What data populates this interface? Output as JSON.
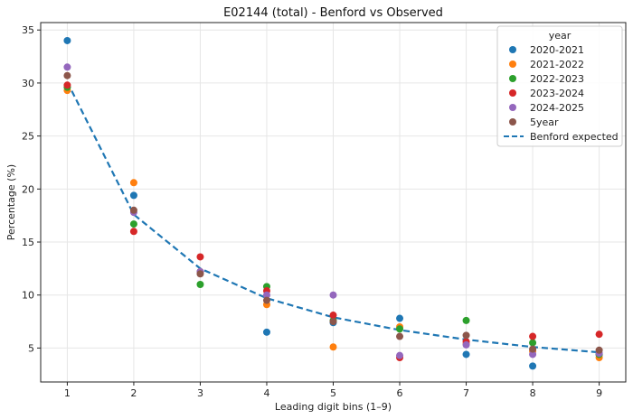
{
  "chart_data": {
    "type": "scatter",
    "title": "E02144 (total) - Benford vs Observed",
    "xlabel": "Leading digit bins (1–9)",
    "ylabel": "Percentage (%)",
    "x": [
      1,
      2,
      3,
      4,
      5,
      6,
      7,
      8,
      9
    ],
    "xlim": [
      0.6,
      9.4
    ],
    "ylim": [
      1.8,
      35.7
    ],
    "xticks": [
      1,
      2,
      3,
      4,
      5,
      6,
      7,
      8,
      9
    ],
    "yticks": [
      5,
      10,
      15,
      20,
      25,
      30,
      35
    ],
    "grid": true,
    "legend": {
      "title": "year",
      "placement": "top-right"
    },
    "series": [
      {
        "name": "2020-2021",
        "color": "#1f77b4",
        "values": [
          34.0,
          19.4,
          12.2,
          6.5,
          7.4,
          7.8,
          4.4,
          3.3,
          4.4
        ]
      },
      {
        "name": "2021-2022",
        "color": "#ff7f0e",
        "values": [
          29.3,
          20.6,
          12.2,
          9.1,
          5.1,
          7.0,
          5.4,
          4.7,
          4.1
        ]
      },
      {
        "name": "2022-2023",
        "color": "#2ca02c",
        "values": [
          29.6,
          16.7,
          11.0,
          10.8,
          7.6,
          6.8,
          7.6,
          5.5,
          4.4
        ]
      },
      {
        "name": "2023-2024",
        "color": "#d62728",
        "values": [
          29.8,
          16.0,
          13.6,
          10.4,
          8.1,
          4.1,
          5.6,
          6.1,
          6.3
        ]
      },
      {
        "name": "2024-2025",
        "color": "#9467bd",
        "values": [
          31.5,
          17.8,
          12.2,
          10.0,
          10.0,
          4.3,
          5.3,
          4.4,
          4.5
        ]
      },
      {
        "name": "5year",
        "color": "#8c564b",
        "values": [
          30.7,
          18.0,
          12.0,
          9.5,
          7.5,
          6.1,
          6.2,
          4.9,
          4.8
        ]
      }
    ],
    "reference_line": {
      "name": "Benford expected",
      "color": "#1f77b4",
      "style": "dashed",
      "values": [
        30.1,
        17.6,
        12.5,
        9.7,
        7.9,
        6.7,
        5.8,
        5.1,
        4.6
      ]
    }
  }
}
